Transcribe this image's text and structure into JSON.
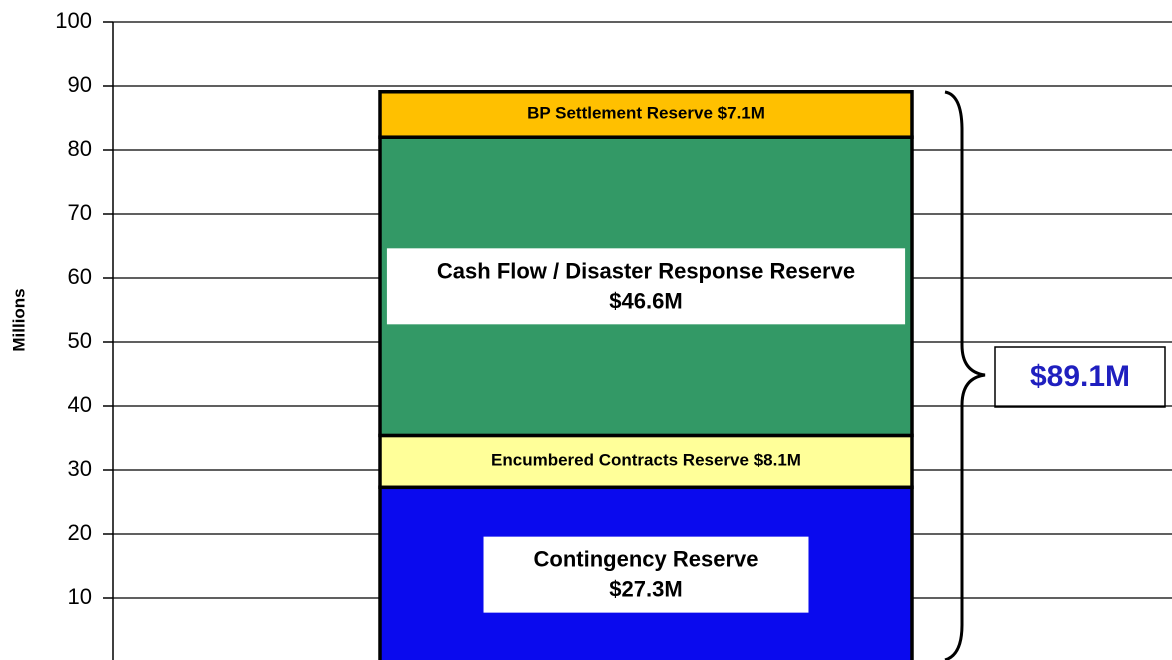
{
  "chart_data": {
    "type": "stacked_bar",
    "y_label": "Millions",
    "ylim": [
      0,
      100
    ],
    "yticks": [
      10,
      20,
      30,
      40,
      50,
      60,
      70,
      80,
      90,
      100
    ],
    "grid": true,
    "series": [
      {
        "name": "Contingency Reserve",
        "color": "#0a0aee",
        "values": [
          27.3
        ],
        "value_labels": [
          "$27.3M"
        ]
      },
      {
        "name": "Encumbered Contracts Reserve",
        "color": "#ffff99",
        "values": [
          8.1
        ],
        "value_labels": [
          "$8.1M"
        ]
      },
      {
        "name": "Cash Flow / Disaster Response Reserve",
        "color": "#339966",
        "values": [
          46.6
        ],
        "value_labels": [
          "$46.6M"
        ]
      },
      {
        "name": "BP Settlement Reserve",
        "color": "#ffc000",
        "values": [
          7.1
        ],
        "value_labels": [
          "$7.1M"
        ]
      }
    ],
    "total_annotation": "$89.1M"
  }
}
